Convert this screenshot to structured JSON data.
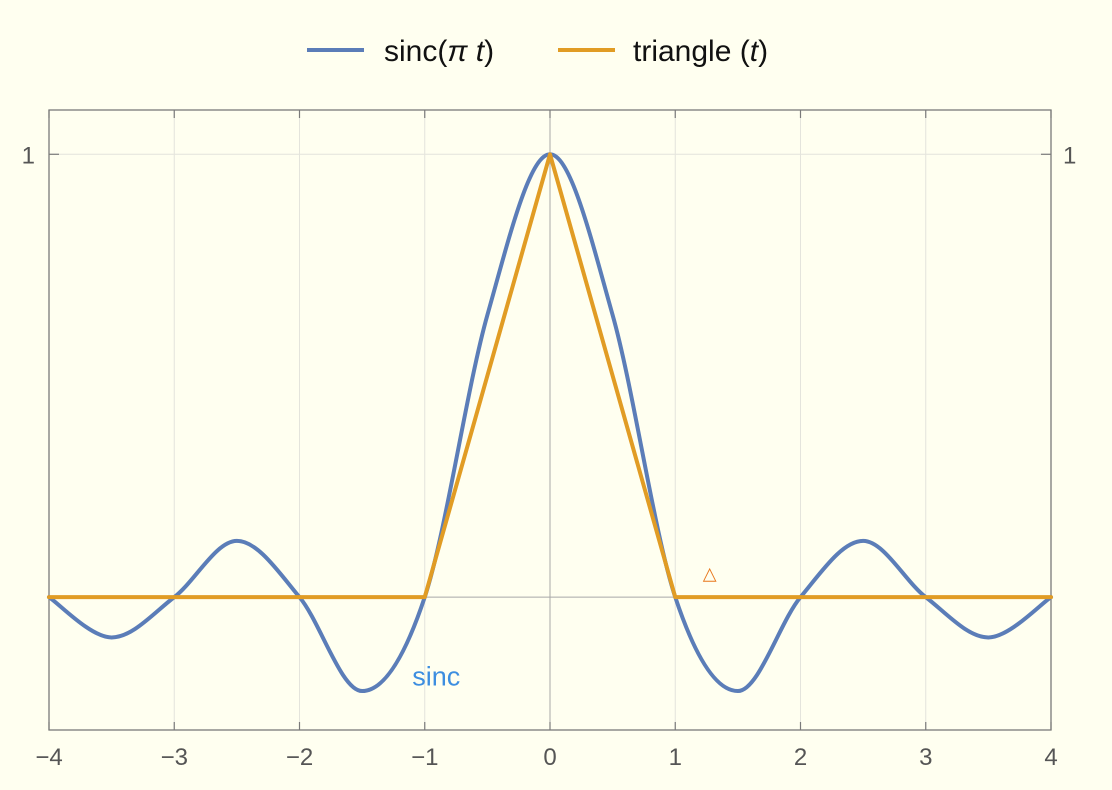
{
  "chart_data": {
    "type": "line",
    "title": "",
    "xlabel": "",
    "ylabel": "",
    "xlim": [
      -4,
      4
    ],
    "ylim": [
      -0.3,
      1.1
    ],
    "x_ticks": [
      -4,
      -3,
      -2,
      -1,
      0,
      1,
      2,
      3,
      4
    ],
    "x_tick_labels": [
      "−4",
      "−3",
      "−2",
      "−1",
      "0",
      "1",
      "2",
      "3",
      "4"
    ],
    "y_ticks": [
      1
    ],
    "y_tick_labels": [
      "1"
    ],
    "grid": true,
    "legend_position": "top",
    "background": "#fffff0",
    "series": [
      {
        "name": "sinc(π t)",
        "legend_main": "sinc",
        "legend_arg": "π t",
        "color": "#5b7db8",
        "x": [
          -4,
          -3.5,
          -3,
          -2.5,
          -2,
          -1.5,
          -1,
          -0.5,
          0,
          0.5,
          1,
          1.5,
          2,
          2.5,
          3,
          3.5,
          4
        ],
        "y": [
          0,
          -0.091,
          0,
          0.127,
          0,
          -0.212,
          0,
          0.637,
          1,
          0.637,
          0,
          -0.212,
          0,
          0.127,
          0,
          -0.091,
          0
        ]
      },
      {
        "name": "triangle(t)",
        "legend_main": "triangle",
        "legend_arg": "t",
        "color": "#e19c24",
        "x": [
          -4,
          -1,
          0,
          1,
          4
        ],
        "y": [
          0,
          0,
          1,
          0,
          0
        ]
      }
    ],
    "annotations": [
      {
        "text": "sinc",
        "x": -1.1,
        "y": -0.2,
        "color": "#3d8ee0"
      },
      {
        "text": "△",
        "x": 1.22,
        "y": 0.04,
        "color": "#e8781e"
      }
    ]
  }
}
